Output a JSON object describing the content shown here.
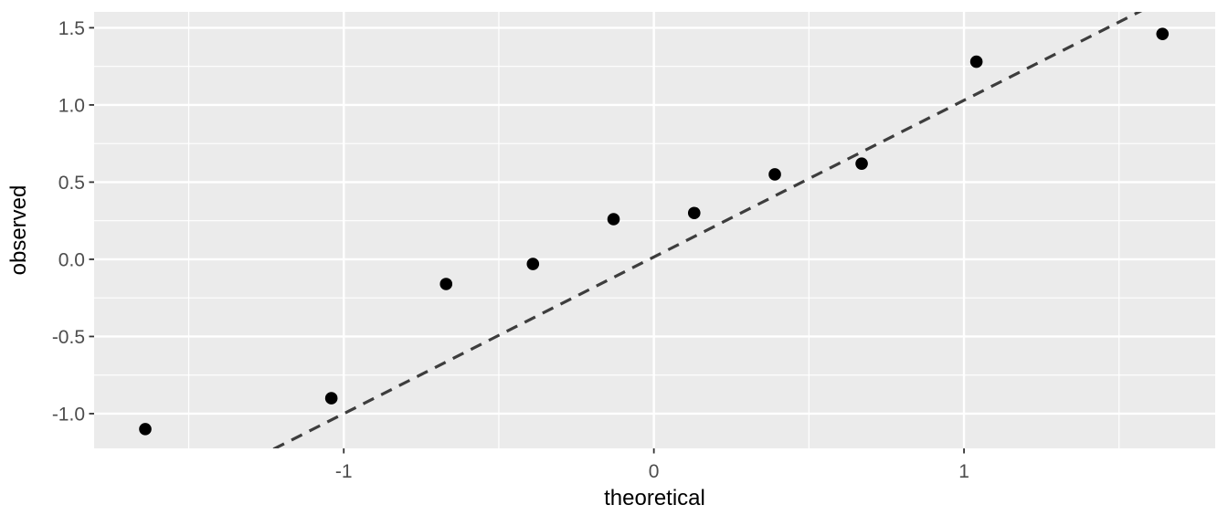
{
  "figure": {
    "background_color": "#ffffff"
  },
  "chart_data": {
    "type": "scatter",
    "title": "",
    "xlabel": "theoretical",
    "ylabel": "observed",
    "xlim": [
      -1.805,
      1.81
    ],
    "ylim": [
      -1.225,
      1.603
    ],
    "grid": true,
    "legend": "none",
    "x_major_ticks": [
      -1,
      0,
      1
    ],
    "x_tick_labels": [
      "-1",
      "0",
      "1"
    ],
    "x_minor_gridlines": [
      -1.5,
      -0.5,
      0.5,
      1.5
    ],
    "y_major_ticks": [
      -1.0,
      -0.5,
      0.0,
      0.5,
      1.0,
      1.5
    ],
    "y_tick_labels": [
      "-1.0",
      "-0.5",
      "0.0",
      "0.5",
      "1.0",
      "1.5"
    ],
    "y_minor_gridlines": [
      -0.75,
      -0.25,
      0.25,
      0.75,
      1.25
    ],
    "points": [
      {
        "theoretical": -1.64,
        "observed": -1.1
      },
      {
        "theoretical": -1.04,
        "observed": -0.9
      },
      {
        "theoretical": -0.67,
        "observed": -0.16
      },
      {
        "theoretical": -0.39,
        "observed": -0.03
      },
      {
        "theoretical": -0.13,
        "observed": 0.26
      },
      {
        "theoretical": 0.13,
        "observed": 0.3
      },
      {
        "theoretical": 0.39,
        "observed": 0.55
      },
      {
        "theoretical": 0.67,
        "observed": 0.62
      },
      {
        "theoretical": 1.04,
        "observed": 1.28
      },
      {
        "theoretical": 1.64,
        "observed": 1.46
      }
    ],
    "reference_line": {
      "slope": 1.015,
      "intercept": 0.015,
      "style": "dashed"
    },
    "colors": {
      "panel_background": "#ebebeb",
      "gridline": "#ffffff",
      "point": "#000000",
      "reference_line": "#3d3d3d",
      "tick_mark": "#333333",
      "tick_label": "#4d4d4d",
      "axis_title": "#000000"
    }
  }
}
